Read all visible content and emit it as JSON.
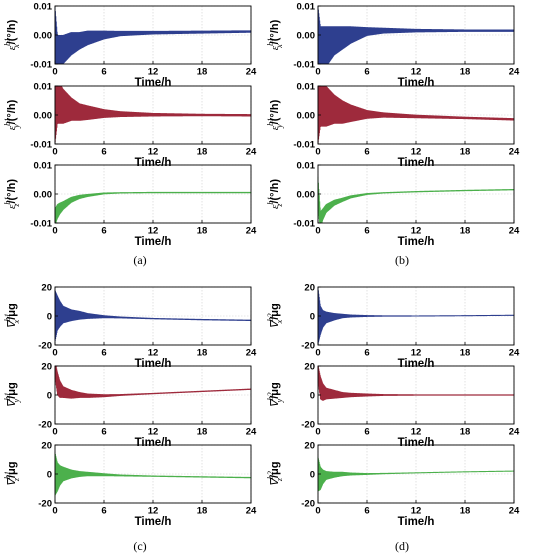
{
  "colors": {
    "x": "#2e3f8f",
    "y": "#9e2a3c",
    "z": "#4cb04c",
    "grid": "#cfcfcf",
    "axis": "#000000"
  },
  "captions": [
    "(a)",
    "(b)",
    "(c)",
    "(d)"
  ],
  "chart_data": [
    {
      "panel": "a",
      "type": "line",
      "xlim": [
        0,
        24
      ],
      "xticks": [
        "0",
        "6",
        "12",
        "18",
        "24"
      ],
      "xlabel": "Time/h",
      "grid": true,
      "subplots": [
        {
          "id": "a-x",
          "color_key": "x",
          "ylabel": "ε_x^{b1}/(°/h)",
          "ylim": [
            -0.01,
            0.01
          ],
          "yticks": [
            "0.01",
            "0.00",
            "-0.01"
          ],
          "series": {
            "x": [
              0,
              0.3,
              0.6,
              1,
              2,
              3,
              4,
              6,
              8,
              12,
              18,
              24
            ],
            "y": [
              0.0,
              -0.008,
              -0.006,
              -0.005,
              -0.003,
              -0.002,
              -0.001,
              0.0,
              0.0005,
              0.0008,
              0.001,
              0.0012
            ],
            "amp": [
              0.01,
              0.008,
              0.006,
              0.005,
              0.004,
              0.003,
              0.0025,
              0.0015,
              0.0009,
              0.0006,
              0.0005,
              0.0004
            ]
          }
        },
        {
          "id": "a-y",
          "color_key": "y",
          "ylabel": "ε_y^{b1}/(°/h)",
          "ylim": [
            -0.01,
            0.01
          ],
          "yticks": [
            "0.01",
            "0.00",
            "-0.01"
          ],
          "series": {
            "x": [
              0,
              0.3,
              0.6,
              1,
              2,
              3,
              4,
              6,
              8,
              12,
              18,
              24
            ],
            "y": [
              0.0,
              0.006,
              0.004,
              0.003,
              0.002,
              0.001,
              0.0008,
              0.0005,
              0.0003,
              0.0001,
              0.0,
              -0.0001
            ],
            "amp": [
              0.01,
              0.009,
              0.007,
              0.006,
              0.004,
              0.003,
              0.0025,
              0.0015,
              0.001,
              0.0006,
              0.0004,
              0.0004
            ]
          }
        },
        {
          "id": "a-z",
          "color_key": "z",
          "ylabel": "ε_z^{b1}/(°/h)",
          "ylim": [
            -0.01,
            0.01
          ],
          "yticks": [
            "0.01",
            "0.00",
            "-0.01"
          ],
          "series": {
            "x": [
              0,
              0.3,
              0.6,
              1,
              2,
              3,
              4,
              6,
              8,
              12,
              18,
              24
            ],
            "y": [
              -0.008,
              -0.006,
              -0.005,
              -0.004,
              -0.002,
              -0.001,
              -0.0005,
              0.0002,
              0.0004,
              0.0005,
              0.0005,
              0.0005
            ],
            "amp": [
              0.003,
              0.0025,
              0.002,
              0.0015,
              0.001,
              0.0007,
              0.0005,
              0.0003,
              0.0002,
              0.0002,
              0.0002,
              0.0002
            ]
          }
        }
      ]
    },
    {
      "panel": "b",
      "type": "line",
      "xlim": [
        0,
        24
      ],
      "xticks": [
        "0",
        "6",
        "12",
        "18",
        "24"
      ],
      "xlabel": "Time/h",
      "grid": true,
      "subplots": [
        {
          "id": "b-x",
          "color_key": "x",
          "ylabel": "ε_x^{b1}/(°/h)",
          "ylim": [
            -0.01,
            0.01
          ],
          "yticks": [
            "0.01",
            "0.00",
            "-0.01"
          ],
          "series": {
            "x": [
              0,
              0.3,
              0.6,
              1,
              2,
              3,
              4,
              6,
              8,
              12,
              18,
              24
            ],
            "y": [
              0.0,
              -0.006,
              -0.005,
              -0.004,
              -0.002,
              -0.001,
              0.0,
              0.0012,
              0.0015,
              0.0015,
              0.0015,
              0.0015
            ],
            "amp": [
              0.01,
              0.009,
              0.008,
              0.007,
              0.005,
              0.004,
              0.003,
              0.0015,
              0.001,
              0.0006,
              0.0004,
              0.0004
            ]
          }
        },
        {
          "id": "b-y",
          "color_key": "y",
          "ylabel": "ε_y^{b1}/(°/h)",
          "ylim": [
            -0.01,
            0.01
          ],
          "yticks": [
            "0.01",
            "0.00",
            "-0.01"
          ],
          "series": {
            "x": [
              0,
              0.3,
              0.6,
              1,
              2,
              3,
              4,
              6,
              8,
              12,
              18,
              24
            ],
            "y": [
              0.0,
              0.005,
              0.004,
              0.003,
              0.002,
              0.001,
              0.0006,
              0.0002,
              0.0,
              -0.0005,
              -0.001,
              -0.0015
            ],
            "amp": [
              0.01,
              0.009,
              0.008,
              0.007,
              0.005,
              0.004,
              0.003,
              0.0015,
              0.0009,
              0.0006,
              0.0004,
              0.0004
            ]
          }
        },
        {
          "id": "b-z",
          "color_key": "z",
          "ylabel": "ε_z^{b1}/(°/h)",
          "ylim": [
            -0.01,
            0.01
          ],
          "yticks": [
            "0.01",
            "0.00",
            "-0.01"
          ],
          "series": {
            "x": [
              0,
              0.3,
              0.6,
              1,
              2,
              3,
              4,
              6,
              8,
              12,
              18,
              24
            ],
            "y": [
              0.0,
              -0.009,
              -0.007,
              -0.005,
              -0.003,
              -0.002,
              -0.001,
              0.0,
              0.0004,
              0.0008,
              0.0012,
              0.0015
            ],
            "amp": [
              0.006,
              0.003,
              0.002,
              0.0015,
              0.001,
              0.0007,
              0.0005,
              0.0003,
              0.0002,
              0.0002,
              0.0002,
              0.0002
            ]
          }
        }
      ]
    },
    {
      "panel": "c",
      "type": "line",
      "xlim": [
        0,
        24
      ],
      "xticks": [
        "0",
        "6",
        "12",
        "18",
        "24"
      ],
      "xlabel": "Time/h",
      "grid": true,
      "subplots": [
        {
          "id": "c-x",
          "color_key": "x",
          "ylabel": "∇_x^{b1}/μg",
          "ylim": [
            -20,
            20
          ],
          "yticks": [
            "20",
            "0",
            "-20"
          ],
          "series": {
            "x": [
              0,
              0.3,
              0.6,
              1,
              2,
              3,
              4,
              6,
              8,
              12,
              18,
              24
            ],
            "y": [
              0,
              2,
              1.5,
              1,
              0.5,
              0.5,
              0,
              -0.5,
              -1,
              -1.8,
              -2.5,
              -3
            ],
            "amp": [
              18,
              12,
              9,
              6,
              4,
              3,
              2,
              1,
              0.6,
              0.4,
              0.4,
              0.4
            ]
          }
        },
        {
          "id": "c-y",
          "color_key": "y",
          "ylabel": "∇_y^{b1}/μg",
          "ylim": [
            -20,
            20
          ],
          "yticks": [
            "20",
            "0",
            "-20"
          ],
          "series": {
            "x": [
              0,
              0.3,
              0.6,
              1,
              2,
              3,
              4,
              6,
              8,
              12,
              18,
              24
            ],
            "y": [
              18,
              8,
              4,
              2,
              0.5,
              0,
              -0.5,
              -0.5,
              0,
              1,
              2.5,
              4
            ],
            "amp": [
              6,
              8,
              6,
              4,
              3,
              2,
              1.5,
              1,
              0.6,
              0.4,
              0.4,
              0.4
            ]
          }
        },
        {
          "id": "c-z",
          "color_key": "z",
          "ylabel": "∇_z^{b1}/μg",
          "ylim": [
            -20,
            20
          ],
          "yticks": [
            "20",
            "0",
            "-20"
          ],
          "series": {
            "x": [
              0,
              0.3,
              0.6,
              1,
              2,
              3,
              4,
              6,
              8,
              12,
              18,
              24
            ],
            "y": [
              0,
              -2,
              -1,
              0,
              0,
              0,
              0,
              -0.5,
              -1,
              -1.5,
              -2,
              -2.5
            ],
            "amp": [
              15,
              10,
              7,
              5,
              3,
              2,
              1.5,
              1,
              0.6,
              0.4,
              0.4,
              0.4
            ]
          }
        }
      ]
    },
    {
      "panel": "d",
      "type": "line",
      "xlim": [
        0,
        24
      ],
      "xticks": [
        "0",
        "6",
        "12",
        "18",
        "24"
      ],
      "xlabel": "Time/h",
      "grid": true,
      "subplots": [
        {
          "id": "d-x",
          "color_key": "x",
          "ylabel": "∇_x^{b2}/μg",
          "ylim": [
            -20,
            20
          ],
          "yticks": [
            "20",
            "0",
            "-20"
          ],
          "series": {
            "x": [
              0,
              0.3,
              0.6,
              1,
              2,
              3,
              4,
              6,
              8,
              12,
              18,
              24
            ],
            "y": [
              0,
              -3,
              -2,
              -1,
              -0.5,
              0,
              0,
              0,
              0,
              0,
              0.2,
              0.5
            ],
            "amp": [
              20,
              10,
              6,
              4,
              2.5,
              1.5,
              1,
              0.6,
              0.4,
              0.3,
              0.3,
              0.3
            ]
          }
        },
        {
          "id": "d-y",
          "color_key": "y",
          "ylabel": "∇_y^{b2}/μg",
          "ylim": [
            -20,
            20
          ],
          "yticks": [
            "20",
            "0",
            "-20"
          ],
          "series": {
            "x": [
              0,
              0.3,
              0.6,
              1,
              2,
              3,
              4,
              6,
              8,
              12,
              18,
              24
            ],
            "y": [
              15,
              5,
              2,
              1,
              0.5,
              0,
              0,
              0,
              0,
              0,
              0,
              0
            ],
            "amp": [
              6,
              8,
              6,
              4,
              3,
              2,
              1.5,
              1,
              0.6,
              0.4,
              0.4,
              0.4
            ]
          }
        },
        {
          "id": "d-z",
          "color_key": "z",
          "ylabel": "∇_z^{b2}/μg",
          "ylim": [
            -20,
            20
          ],
          "yticks": [
            "20",
            "0",
            "-20"
          ],
          "series": {
            "x": [
              0,
              0.3,
              0.6,
              1,
              2,
              3,
              4,
              6,
              8,
              12,
              18,
              24
            ],
            "y": [
              0,
              -3,
              -2,
              -1,
              -0.5,
              0,
              0,
              0,
              0.3,
              0.8,
              1.5,
              2
            ],
            "amp": [
              12,
              8,
              5,
              3,
              2,
              1.5,
              1,
              0.6,
              0.4,
              0.3,
              0.3,
              0.3
            ]
          }
        }
      ]
    }
  ]
}
